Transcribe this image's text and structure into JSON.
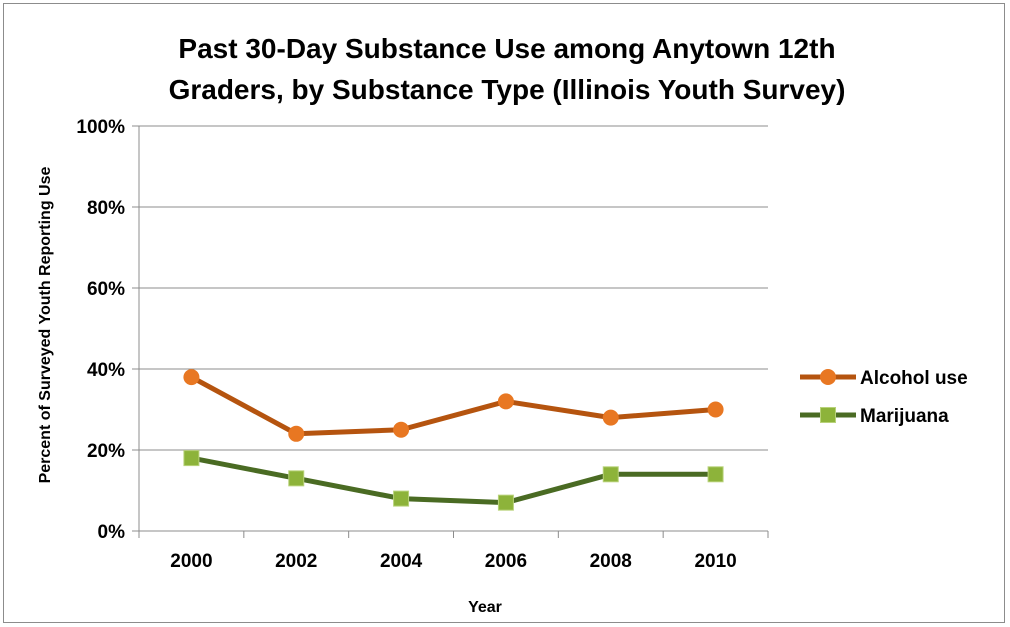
{
  "chart_data": {
    "type": "line",
    "title_line1": "Past 30-Day Substance Use among Anytown 12th",
    "title_line2": "Graders, by Substance Type (Illinois Youth Survey)",
    "xlabel": "Year",
    "ylabel": "Percent of Surveyed Youth Reporting Use",
    "categories": [
      "2000",
      "2002",
      "2004",
      "2006",
      "2008",
      "2010"
    ],
    "y_ticks": [
      "0%",
      "20%",
      "40%",
      "60%",
      "80%",
      "100%"
    ],
    "ylim": [
      0,
      100
    ],
    "grid": true,
    "legend_position": "right",
    "series": [
      {
        "name": "Alcohol use",
        "values": [
          38,
          24,
          25,
          32,
          28,
          30
        ],
        "line_color": "#b5540f",
        "marker_color": "#e87722",
        "marker": "circle"
      },
      {
        "name": "Marijuana",
        "values": [
          18,
          13,
          8,
          7,
          14,
          14
        ],
        "line_color": "#4a6b23",
        "marker_color": "#8db33a",
        "marker": "square"
      }
    ]
  }
}
